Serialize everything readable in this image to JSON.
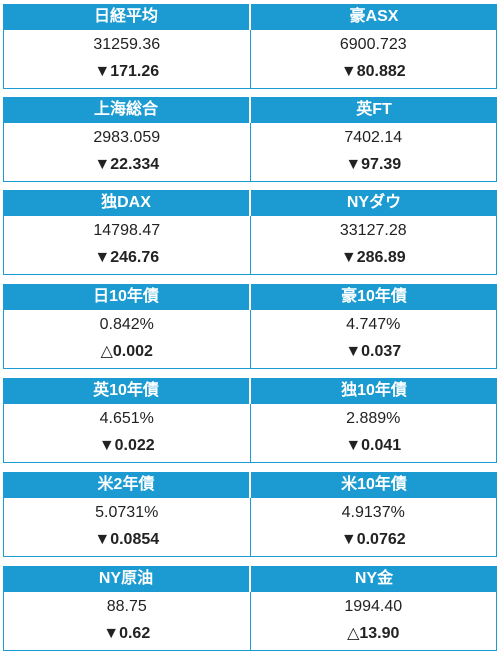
{
  "blocks": [
    {
      "left": {
        "title": "日経平均",
        "value": "31259.36",
        "change": "▼171.26"
      },
      "right": {
        "title": "豪ASX",
        "value": "6900.723",
        "change": "▼80.882"
      }
    },
    {
      "left": {
        "title": "上海総合",
        "value": "2983.059",
        "change": "▼22.334"
      },
      "right": {
        "title": "英FT",
        "value": "7402.14",
        "change": "▼97.39"
      }
    },
    {
      "left": {
        "title": "独DAX",
        "value": "14798.47",
        "change": "▼246.76"
      },
      "right": {
        "title": "NYダウ",
        "value": "33127.28",
        "change": "▼286.89"
      }
    },
    {
      "left": {
        "title": "日10年債",
        "value": "0.842%",
        "change": "△0.002"
      },
      "right": {
        "title": "豪10年債",
        "value": "4.747%",
        "change": "▼0.037"
      }
    },
    {
      "left": {
        "title": "英10年債",
        "value": "4.651%",
        "change": "▼0.022"
      },
      "right": {
        "title": "独10年債",
        "value": "2.889%",
        "change": "▼0.041"
      }
    },
    {
      "left": {
        "title": "米2年債",
        "value": "5.0731%",
        "change": "▼0.0854"
      },
      "right": {
        "title": "米10年債",
        "value": "4.9137%",
        "change": "▼0.0762"
      }
    },
    {
      "left": {
        "title": "NY原油",
        "value": "88.75",
        "change": "▼0.62"
      },
      "right": {
        "title": "NY金",
        "value": "1994.40",
        "change": "△13.90"
      }
    }
  ],
  "colors": {
    "header": "#1b9bd1",
    "header_text": "#ffffff",
    "border": "#1b9bd1",
    "text": "#222222"
  }
}
